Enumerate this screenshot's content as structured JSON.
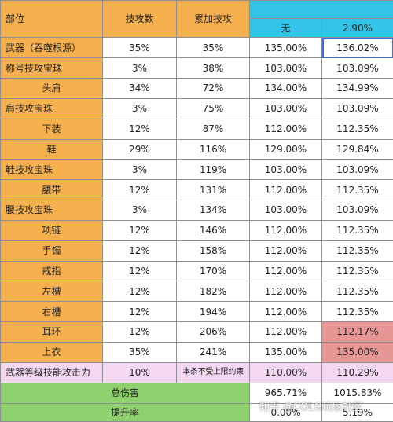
{
  "headers": {
    "part": "部位",
    "skill_atk": "技攻数",
    "cumulative": "累加技攻",
    "none": "无",
    "pct": "2.90%"
  },
  "rows": [
    {
      "part": "武器（吞噬根源）",
      "skill_atk": "35%",
      "cumulative": "35%",
      "none": "135.00%",
      "pct": "136.02%"
    },
    {
      "part": "称号技攻宝珠",
      "skill_atk": "3%",
      "cumulative": "38%",
      "none": "103.00%",
      "pct": "103.09%"
    },
    {
      "part": "头肩",
      "skill_atk": "34%",
      "cumulative": "72%",
      "none": "134.00%",
      "pct": "134.99%"
    },
    {
      "part": "肩技攻宝珠",
      "skill_atk": "3%",
      "cumulative": "75%",
      "none": "103.00%",
      "pct": "103.09%"
    },
    {
      "part": "下装",
      "skill_atk": "12%",
      "cumulative": "87%",
      "none": "112.00%",
      "pct": "112.35%"
    },
    {
      "part": "鞋",
      "skill_atk": "29%",
      "cumulative": "116%",
      "none": "129.00%",
      "pct": "129.84%"
    },
    {
      "part": "鞋技攻宝珠",
      "skill_atk": "3%",
      "cumulative": "119%",
      "none": "103.00%",
      "pct": "103.09%"
    },
    {
      "part": "腰带",
      "skill_atk": "12%",
      "cumulative": "131%",
      "none": "112.00%",
      "pct": "112.35%"
    },
    {
      "part": "腰技攻宝珠",
      "skill_atk": "3%",
      "cumulative": "134%",
      "none": "103.00%",
      "pct": "103.09%"
    },
    {
      "part": "项链",
      "skill_atk": "12%",
      "cumulative": "146%",
      "none": "112.00%",
      "pct": "112.35%"
    },
    {
      "part": "手镯",
      "skill_atk": "12%",
      "cumulative": "158%",
      "none": "112.00%",
      "pct": "112.35%"
    },
    {
      "part": "戒指",
      "skill_atk": "12%",
      "cumulative": "170%",
      "none": "112.00%",
      "pct": "112.35%"
    },
    {
      "part": "左槽",
      "skill_atk": "12%",
      "cumulative": "182%",
      "none": "112.00%",
      "pct": "112.35%"
    },
    {
      "part": "右槽",
      "skill_atk": "12%",
      "cumulative": "194%",
      "none": "112.00%",
      "pct": "112.35%"
    },
    {
      "part": "耳环",
      "skill_atk": "12%",
      "cumulative": "206%",
      "none": "112.00%",
      "pct": "112.17%"
    },
    {
      "part": "上衣",
      "skill_atk": "35%",
      "cumulative": "241%",
      "none": "135.00%",
      "pct": "135.00%"
    },
    {
      "part": "武器等级技能攻击力",
      "skill_atk": "10%",
      "cumulative": "本条不受上限约束",
      "none": "110.00%",
      "pct": "110.29%"
    }
  ],
  "summary": {
    "total_label": "总伤害",
    "total_none": "965.71%",
    "total_pct": "1015.83%",
    "rate_label": "提升率",
    "rate_none": "0.00%",
    "rate_pct": "5.19%"
  },
  "colors": {
    "orange": "#f6b04e",
    "cyan": "#31c4e8",
    "pink": "#f4d7f1",
    "red": "#e79696",
    "green": "#8fd16f"
  },
  "watermark": "知乎 @COLG玩家社区"
}
